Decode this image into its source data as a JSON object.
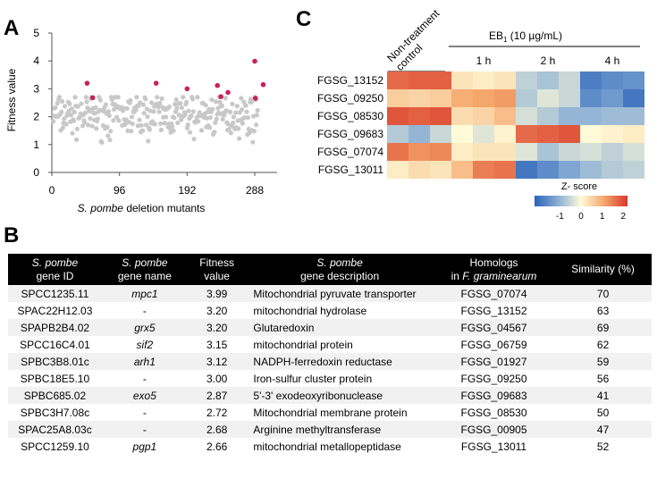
{
  "panels": {
    "a": "A",
    "b": "B",
    "c": "C"
  },
  "chart_data": [
    {
      "type": "scatter",
      "ylabel": "Fitness value",
      "xlabel_italic": "S. pombe",
      "xlabel_rest": " deletion mutants",
      "ylim": [
        0,
        5
      ],
      "xlim": [
        0,
        320
      ],
      "yticks": [
        "0",
        "1",
        "2",
        "3",
        "4",
        "5"
      ],
      "xticks": [
        "0",
        "96",
        "192",
        "288"
      ],
      "highlight_color": "#c8225a",
      "base_color": "#c8c8c8",
      "highlighted": [
        {
          "x": 50,
          "y": 3.2
        },
        {
          "x": 58,
          "y": 2.68
        },
        {
          "x": 148,
          "y": 3.2
        },
        {
          "x": 192,
          "y": 3.0
        },
        {
          "x": 235,
          "y": 3.12
        },
        {
          "x": 240,
          "y": 2.72
        },
        {
          "x": 250,
          "y": 2.87
        },
        {
          "x": 288,
          "y": 3.99
        },
        {
          "x": 289,
          "y": 2.66
        },
        {
          "x": 300,
          "y": 3.15
        }
      ]
    },
    {
      "type": "heatmap",
      "group_label": "Non-treatment control",
      "group_label_lines": [
        "Non-treatment",
        "control"
      ],
      "treatment_label": "EB",
      "treatment_sub": "1",
      "treatment_conc": " (10 µg/mL)",
      "timepoints": [
        "1 h",
        "2 h",
        "4 h"
      ],
      "rows": [
        "FGSG_13152",
        "FGSG_09250",
        "FGSG_08530",
        "FGSG_09683",
        "FGSG_07074",
        "FGSG_13011"
      ],
      "zscores": [
        [
          1.7,
          1.8,
          1.8,
          0.3,
          0.2,
          0.3,
          -0.6,
          -0.8,
          -0.5,
          -1.8,
          -1.6,
          -1.5
        ],
        [
          0.6,
          0.5,
          0.6,
          1.0,
          1.1,
          1.2,
          -0.7,
          -0.3,
          -0.5,
          -1.6,
          -1.4,
          -1.9
        ],
        [
          1.9,
          1.8,
          1.9,
          0.4,
          0.5,
          0.8,
          -0.4,
          -0.7,
          -1.0,
          -1.0,
          -0.9,
          -0.9
        ],
        [
          -0.7,
          -1.0,
          -0.5,
          0.0,
          -0.3,
          0.1,
          1.7,
          1.8,
          1.9,
          0.0,
          0.1,
          0.2
        ],
        [
          1.6,
          1.3,
          1.4,
          0.2,
          0.3,
          0.3,
          -0.3,
          -0.8,
          -0.5,
          -0.4,
          -0.6,
          -0.4
        ],
        [
          0.2,
          0.4,
          0.3,
          0.8,
          1.5,
          1.6,
          -1.9,
          -1.6,
          -1.2,
          -0.9,
          -0.7,
          -0.6
        ]
      ],
      "legend_title": "Z- score",
      "legend_ticks": [
        "-1",
        "0",
        "1",
        "2"
      ],
      "legend_values": [
        -1,
        0,
        1,
        2
      ],
      "color_min": -2.2,
      "color_max": 2.2
    }
  ],
  "table": {
    "headers": [
      {
        "l1": "S. pombe",
        "l1_italic": true,
        "l2": "gene ID"
      },
      {
        "l1": "S. pombe",
        "l1_italic": true,
        "l2": "gene name"
      },
      {
        "l1": "Fitness",
        "l1_italic": false,
        "l2": "value"
      },
      {
        "l1": "S. pombe",
        "l1_italic": true,
        "l2": "gene description"
      },
      {
        "l1": "Homologs",
        "l1_italic": false,
        "l2": "in F. graminearum"
      },
      {
        "l1": "Similarity (%)",
        "l1_italic": false,
        "l2": ""
      }
    ],
    "rows": [
      [
        "SPCC1235.11",
        "mpc1",
        "3.99",
        "Mitochondrial pyruvate transporter",
        "FGSG_07074",
        "70"
      ],
      [
        "SPAC22H12.03",
        "-",
        "3.20",
        "mitochondrial hydrolase",
        "FGSG_13152",
        "63"
      ],
      [
        "SPAPB2B4.02",
        "grx5",
        "3.20",
        "Glutaredoxin",
        "FGSG_04567",
        "69"
      ],
      [
        "SPCC16C4.01",
        "sif2",
        "3.15",
        "mitochondrial protein",
        "FGSG_06759",
        "62"
      ],
      [
        "SPBC3B8.01c",
        "arh1",
        "3.12",
        "NADPH-ferredoxin reductase",
        "FGSG_01927",
        "59"
      ],
      [
        "SPBC18E5.10",
        "-",
        "3.00",
        "Iron-sulfur cluster protein",
        "FGSG_09250",
        "56"
      ],
      [
        "SPBC685.02",
        "exo5",
        "2.87",
        "5'-3' exodeoxyribonuclease",
        "FGSG_09683",
        "41"
      ],
      [
        "SPBC3H7.08c",
        "-",
        "2.72",
        "Mitochondrial membrane protein",
        "FGSG_08530",
        "50"
      ],
      [
        "SPAC25A8.03c",
        "-",
        "2.68",
        "Arginine methyltransferase",
        "FGSG_00905",
        "47"
      ],
      [
        "SPCC1259.10",
        "pgp1",
        "2.66",
        "mitochondrial metallopeptidase",
        "FGSG_13011",
        "52"
      ]
    ]
  }
}
